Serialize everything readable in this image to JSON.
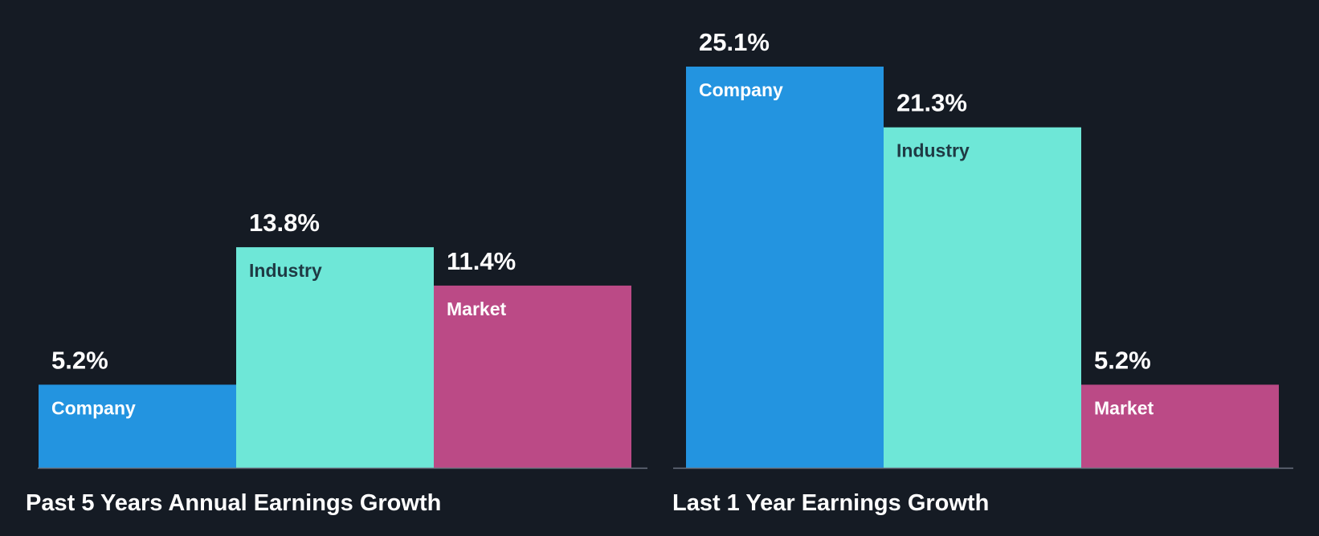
{
  "colors": {
    "background": "#151b24",
    "company": "#2394e0",
    "industry": "#6ee7d7",
    "market": "#bb4a86",
    "baseline": "#6b7280",
    "value_text": "#ffffff",
    "label_on_blue": "#ffffff",
    "label_on_teal": "#1f3a44",
    "label_on_pink": "#ffffff"
  },
  "chart_data": [
    {
      "type": "bar",
      "title": "Past 5 Years Annual Earnings Growth",
      "categories": [
        "Company",
        "Industry",
        "Market"
      ],
      "values": [
        5.2,
        13.8,
        11.4
      ],
      "value_labels": [
        "5.2%",
        "13.8%",
        "11.4%"
      ],
      "unit": "%",
      "ylim": [
        0,
        25.1
      ]
    },
    {
      "type": "bar",
      "title": "Last 1 Year Earnings Growth",
      "categories": [
        "Company",
        "Industry",
        "Market"
      ],
      "values": [
        25.1,
        21.3,
        5.2
      ],
      "value_labels": [
        "25.1%",
        "21.3%",
        "5.2%"
      ],
      "unit": "%",
      "ylim": [
        0,
        25.1
      ]
    }
  ]
}
